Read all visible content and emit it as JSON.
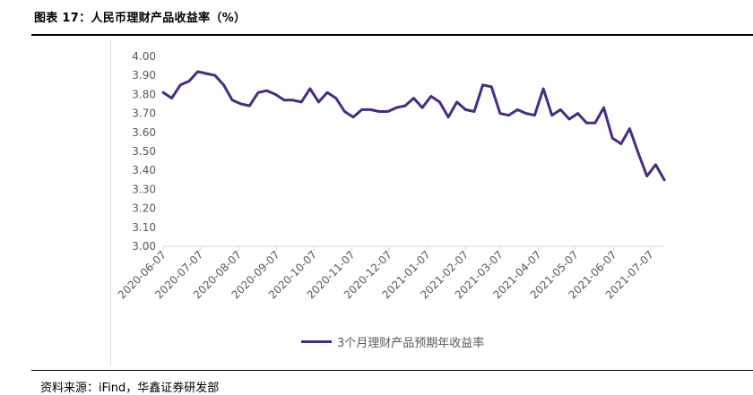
{
  "figure_title": "图表 17：人民币理财产品收益率（%）",
  "source_text": "资料来源：iFind，华鑫证券研发部",
  "colors": {
    "series": "#4a2b84",
    "axis": "#d9d9d9",
    "tick_text": "#595959"
  },
  "chart_data": {
    "type": "line",
    "title": "",
    "xlabel": "",
    "ylabel": "",
    "ylim": [
      3.0,
      4.0
    ],
    "yticks": [
      3.0,
      3.1,
      3.2,
      3.3,
      3.4,
      3.5,
      3.6,
      3.7,
      3.8,
      3.9,
      4.0
    ],
    "ytick_labels": [
      "3.00",
      "3.10",
      "3.20",
      "3.30",
      "3.40",
      "3.50",
      "3.60",
      "3.70",
      "3.80",
      "3.90",
      "4.00"
    ],
    "x_tick_labels": [
      "2020-06-07",
      "2020-07-07",
      "2020-08-07",
      "2020-09-07",
      "2020-10-07",
      "2020-11-07",
      "2020-12-07",
      "2021-01-07",
      "2021-02-07",
      "2021-03-07",
      "2021-04-07",
      "2021-05-07",
      "2021-06-07",
      "2021-07-07"
    ],
    "grid": false,
    "legend_position": "bottom",
    "series": [
      {
        "name": "3个月理财产品预期年收益率",
        "x": [
          "2020-06-07",
          "2020-06-14",
          "2020-06-21",
          "2020-06-28",
          "2020-07-05",
          "2020-07-12",
          "2020-07-19",
          "2020-07-26",
          "2020-08-02",
          "2020-08-09",
          "2020-08-16",
          "2020-08-23",
          "2020-08-30",
          "2020-09-06",
          "2020-09-13",
          "2020-09-20",
          "2020-09-27",
          "2020-10-04",
          "2020-10-11",
          "2020-10-18",
          "2020-10-25",
          "2020-11-01",
          "2020-11-08",
          "2020-11-15",
          "2020-11-22",
          "2020-11-29",
          "2020-12-06",
          "2020-12-13",
          "2020-12-20",
          "2020-12-27",
          "2021-01-03",
          "2021-01-10",
          "2021-01-17",
          "2021-01-24",
          "2021-01-31",
          "2021-02-07",
          "2021-02-14",
          "2021-02-21",
          "2021-02-28",
          "2021-03-07",
          "2021-03-14",
          "2021-03-21",
          "2021-03-28",
          "2021-04-04",
          "2021-04-11",
          "2021-04-18",
          "2021-04-25",
          "2021-05-02",
          "2021-05-09",
          "2021-05-16",
          "2021-05-23",
          "2021-05-30",
          "2021-06-06",
          "2021-06-13",
          "2021-06-20",
          "2021-06-27",
          "2021-07-04",
          "2021-07-11",
          "2021-07-18"
        ],
        "values": [
          3.81,
          3.78,
          3.85,
          3.87,
          3.92,
          3.91,
          3.9,
          3.85,
          3.77,
          3.75,
          3.74,
          3.81,
          3.82,
          3.8,
          3.77,
          3.77,
          3.76,
          3.83,
          3.76,
          3.81,
          3.78,
          3.71,
          3.68,
          3.72,
          3.72,
          3.71,
          3.71,
          3.73,
          3.74,
          3.78,
          3.73,
          3.79,
          3.76,
          3.68,
          3.76,
          3.72,
          3.71,
          3.85,
          3.84,
          3.7,
          3.69,
          3.72,
          3.7,
          3.69,
          3.83,
          3.69,
          3.72,
          3.67,
          3.7,
          3.65,
          3.65,
          3.73,
          3.57,
          3.54,
          3.62,
          3.49,
          3.37,
          3.43,
          3.35
        ]
      }
    ]
  }
}
